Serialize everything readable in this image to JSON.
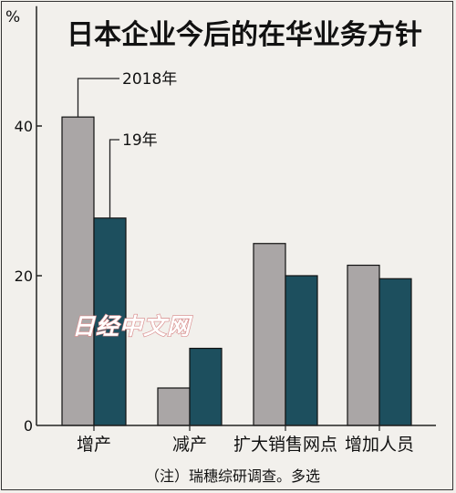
{
  "chart_data": {
    "type": "bar",
    "title": "日本企业今后的在华业务方针",
    "ylabel": "%",
    "ylim": [
      0,
      56
    ],
    "yticks": [
      0,
      20,
      40
    ],
    "categories": [
      "增产",
      "减产",
      "扩大销售网点",
      "增加人员"
    ],
    "series": [
      {
        "name": "2018年",
        "values": [
          41.2,
          5.0,
          24.3,
          21.4
        ],
        "color": "#aaa6a6"
      },
      {
        "name": "19年",
        "values": [
          27.7,
          10.3,
          20.0,
          19.6
        ],
        "color": "#1d4f5e"
      }
    ],
    "note": "（注）瑞穗综研调查。多选"
  },
  "watermark": "日经中文网"
}
